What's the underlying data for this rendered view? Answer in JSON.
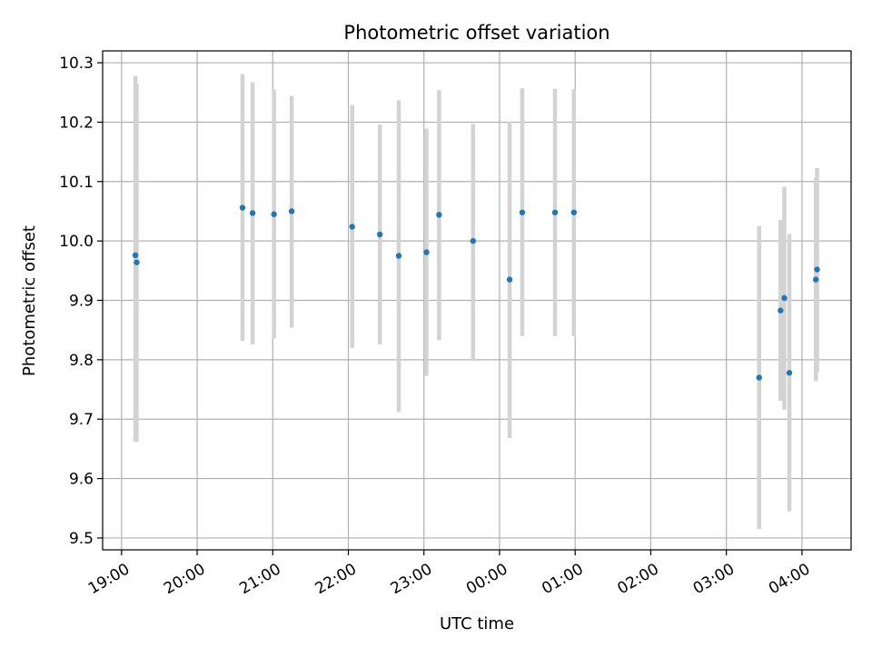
{
  "chart_data": {
    "type": "scatter",
    "title": "Photometric offset variation",
    "xlabel": "UTC time",
    "ylabel": "Photometric offset",
    "grid": true,
    "x_axis_kind": "time",
    "xlim": [
      "18:45",
      "04:39"
    ],
    "ylim": [
      9.48,
      10.32
    ],
    "xticks": [
      "19:00",
      "20:00",
      "21:00",
      "22:00",
      "23:00",
      "00:00",
      "01:00",
      "02:00",
      "03:00",
      "04:00"
    ],
    "yticks": [
      "9.5",
      "9.6",
      "9.7",
      "9.8",
      "9.9",
      "10.0",
      "10.1",
      "10.2",
      "10.3"
    ],
    "series": [
      {
        "marker_color": "#1f77b4",
        "errorbar_color": "#d3d3d3",
        "points": [
          {
            "time": "19:11",
            "y": 9.976,
            "err_low": 9.662,
            "err_high": 10.278
          },
          {
            "time": "19:12",
            "y": 9.964,
            "err_low": 9.662,
            "err_high": 10.265
          },
          {
            "time": "20:36",
            "y": 10.056,
            "err_low": 9.832,
            "err_high": 10.281
          },
          {
            "time": "20:44",
            "y": 10.047,
            "err_low": 9.826,
            "err_high": 10.267
          },
          {
            "time": "21:01",
            "y": 10.045,
            "err_low": 9.836,
            "err_high": 10.255
          },
          {
            "time": "21:15",
            "y": 10.05,
            "err_low": 9.854,
            "err_high": 10.244
          },
          {
            "time": "22:03",
            "y": 10.024,
            "err_low": 9.82,
            "err_high": 10.229
          },
          {
            "time": "22:25",
            "y": 10.011,
            "err_low": 9.826,
            "err_high": 10.196
          },
          {
            "time": "22:40",
            "y": 9.975,
            "err_low": 9.712,
            "err_high": 10.237
          },
          {
            "time": "23:02",
            "y": 9.981,
            "err_low": 9.773,
            "err_high": 10.189
          },
          {
            "time": "23:12",
            "y": 10.044,
            "err_low": 9.833,
            "err_high": 10.254
          },
          {
            "time": "23:39",
            "y": 10.0,
            "err_low": 9.8,
            "err_high": 10.197
          },
          {
            "time": "00:08",
            "y": 9.935,
            "err_low": 9.668,
            "err_high": 10.201
          },
          {
            "time": "00:18",
            "y": 10.048,
            "err_low": 9.84,
            "err_high": 10.257
          },
          {
            "time": "00:44",
            "y": 10.048,
            "err_low": 9.84,
            "err_high": 10.256
          },
          {
            "time": "00:59",
            "y": 10.048,
            "err_low": 9.84,
            "err_high": 10.256
          },
          {
            "time": "03:26",
            "y": 9.77,
            "err_low": 9.515,
            "err_high": 10.025
          },
          {
            "time": "03:43",
            "y": 9.883,
            "err_low": 9.731,
            "err_high": 10.035
          },
          {
            "time": "03:46",
            "y": 9.904,
            "err_low": 9.716,
            "err_high": 10.091
          },
          {
            "time": "03:50",
            "y": 9.778,
            "err_low": 9.545,
            "err_high": 10.012
          },
          {
            "time": "04:11",
            "y": 9.935,
            "err_low": 9.764,
            "err_high": 10.106
          },
          {
            "time": "04:12",
            "y": 9.952,
            "err_low": 9.779,
            "err_high": 10.123
          }
        ]
      }
    ]
  }
}
